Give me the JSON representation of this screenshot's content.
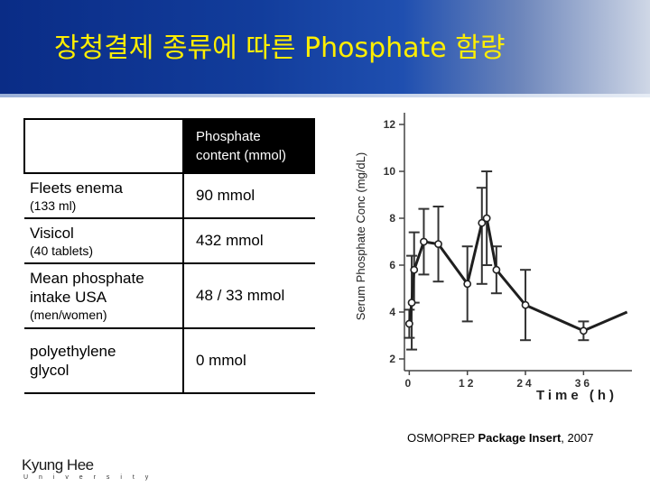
{
  "title": "장청결제 종류에 따른 Phosphate 함량",
  "table": {
    "header": {
      "col2": [
        "Phosphate",
        "content (mmol)"
      ]
    },
    "rows": [
      {
        "name": "Fleets enema",
        "note": "(133 ml)",
        "value": "90 mmol"
      },
      {
        "name": "Visicol",
        "note": "(40 tablets)",
        "value": "432 mmol"
      },
      {
        "name": "Mean phosphate intake USA",
        "note": "(men/women)",
        "value": "48 / 33 mmol"
      },
      {
        "name": "polyethylene glycol",
        "note": "",
        "value": "0 mmol"
      }
    ]
  },
  "chart_data": {
    "type": "line",
    "ylabel": "Serum Phosphate Conc (mg/dL)",
    "xlabel": "Time (h)",
    "x_ticks": [
      "0",
      "12",
      "24",
      "36"
    ],
    "y_ticks": [
      "2",
      "4",
      "6",
      "8",
      "10",
      "12"
    ],
    "xlim": [
      -1,
      46
    ],
    "ylim": [
      1.5,
      12.5
    ],
    "x": [
      0,
      0.5,
      1,
      3,
      6,
      12,
      15,
      16,
      18,
      24,
      36,
      45
    ],
    "y": [
      3.5,
      4.4,
      5.8,
      7.0,
      6.9,
      5.2,
      7.8,
      8.0,
      5.8,
      4.3,
      3.2,
      4.0
    ],
    "error_low": [
      2.9,
      2.4,
      4.4,
      5.6,
      5.3,
      3.6,
      5.2,
      6.0,
      4.8,
      2.8,
      2.8,
      null
    ],
    "error_high": [
      4.1,
      6.4,
      7.4,
      8.4,
      8.5,
      6.8,
      9.3,
      10.0,
      6.8,
      5.8,
      3.6,
      null
    ],
    "line_color": "#1f1f1f"
  },
  "citation": {
    "prefix": "OSMOPREP ",
    "bold": "Package Insert",
    "suffix": ", 2007"
  },
  "logo": {
    "name": "Kyung Hee",
    "sub": "U n i v e r s i t y"
  }
}
